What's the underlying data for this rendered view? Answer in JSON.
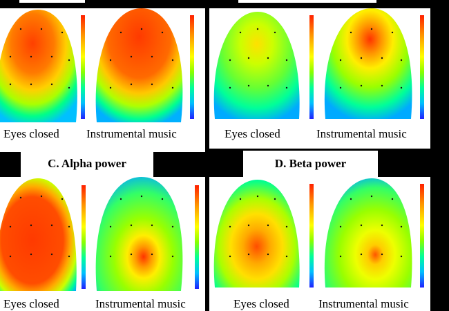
{
  "panels": {
    "A": {
      "left_caption": "Eyes closed",
      "right_caption": "Instrumental music"
    },
    "B": {
      "left_caption": "Eyes closed",
      "right_caption": "Instrumental music"
    },
    "C": {
      "title": "C.  Alpha power",
      "left_caption": "Eyes closed",
      "right_caption": "Instrumental music"
    },
    "D": {
      "title": "D.  Beta power",
      "left_caption": "Eyes closed",
      "right_caption": "Instrumental music"
    }
  },
  "colors": {
    "background": "#000000",
    "panel": "#ffffff",
    "scale": [
      "#1a1aff",
      "#00bfff",
      "#00ff99",
      "#aaff00",
      "#ffff00",
      "#ffaa00",
      "#ff3300"
    ]
  }
}
